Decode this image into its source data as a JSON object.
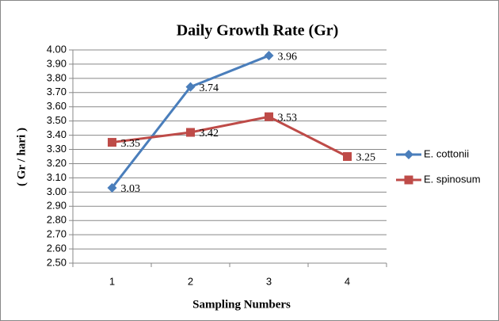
{
  "chart_data": {
    "type": "line",
    "title": "Daily Growth Rate (Gr)",
    "x_label": "Sampling Numbers",
    "y_label": "( Gr / hari )",
    "categories": [
      "1",
      "2",
      "3",
      "4"
    ],
    "series": [
      {
        "name": "E. cottonii",
        "color": "#4a7ebb",
        "marker": "diamond",
        "values": [
          3.03,
          3.74,
          3.96,
          null
        ]
      },
      {
        "name": "E. spinosum",
        "color": "#be4b48",
        "marker": "square",
        "values": [
          3.35,
          3.42,
          3.53,
          3.25
        ]
      }
    ],
    "ylim": [
      2.5,
      4.0
    ],
    "yticks": [
      {
        "value": 2.5,
        "label": "2.50"
      },
      {
        "value": 2.6,
        "label": "2.60"
      },
      {
        "value": 2.7,
        "label": "2.70"
      },
      {
        "value": 2.8,
        "label": "2.80"
      },
      {
        "value": 2.9,
        "label": "2.90"
      },
      {
        "value": 3.0,
        "label": "3.00"
      },
      {
        "value": 3.1,
        "label": "3.10"
      },
      {
        "value": 3.2,
        "label": "3.20"
      },
      {
        "value": 3.3,
        "label": "3.30"
      },
      {
        "value": 3.4,
        "label": "3.40"
      },
      {
        "value": 3.5,
        "label": "3.50"
      },
      {
        "value": 3.6,
        "label": "3.60"
      },
      {
        "value": 3.7,
        "label": "3.70"
      },
      {
        "value": 3.8,
        "label": "3.80"
      },
      {
        "value": 3.9,
        "label": "3.90"
      },
      {
        "value": 4.0,
        "label": "4.00"
      }
    ],
    "grid": true,
    "legend": "right"
  }
}
